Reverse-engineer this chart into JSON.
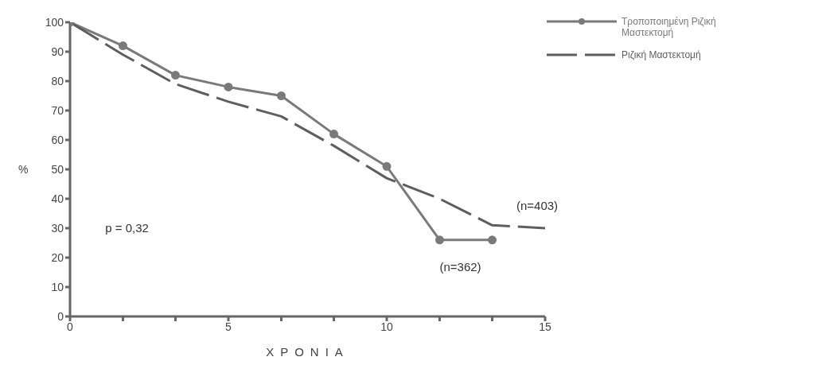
{
  "chart_data": {
    "type": "line",
    "xlabel": "ΧΡΟΝΙΑ",
    "ylabel": "%",
    "xlim": [
      0,
      15
    ],
    "xticks": [
      0,
      {
        "value": 1.67,
        "label": null
      },
      {
        "value": 3.33,
        "label": null
      },
      5,
      {
        "value": 6.67,
        "label": null
      },
      {
        "value": 8.33,
        "label": null
      },
      10,
      {
        "value": 11.67,
        "label": null
      },
      {
        "value": 13.33,
        "label": null
      },
      15
    ],
    "ylim": [
      0,
      100
    ],
    "yticks": [
      0,
      10,
      20,
      30,
      40,
      50,
      60,
      70,
      80,
      90,
      100
    ],
    "grid": false,
    "legend": "top right",
    "series": [
      {
        "name": "Τροποποιημένη Ριζική Μαστεκτομή",
        "color": "#7a7a7a",
        "marker": "circle",
        "line_style": "solid",
        "x": [
          0,
          1.67,
          3.33,
          5,
          6.67,
          8.33,
          10,
          11.67,
          13.33
        ],
        "values": [
          100,
          92,
          82,
          78,
          75,
          62,
          51,
          26,
          26
        ]
      },
      {
        "name": "Ριζική Μαστεκτομή",
        "color": "#5e5e5e",
        "marker": "none",
        "line_style": "dashed",
        "x": [
          0,
          1.67,
          3.33,
          5,
          6.67,
          8.33,
          10,
          11.67,
          13.33,
          15
        ],
        "values": [
          100,
          89,
          79,
          73,
          68,
          58,
          47,
          40,
          31,
          30
        ]
      }
    ],
    "annotations": [
      "p = 0,32",
      {
        "text": "(n=403)",
        "x": 15,
        "y": 30
      },
      {
        "text": "(n=362)",
        "x": 13.33,
        "y": 26
      }
    ]
  }
}
